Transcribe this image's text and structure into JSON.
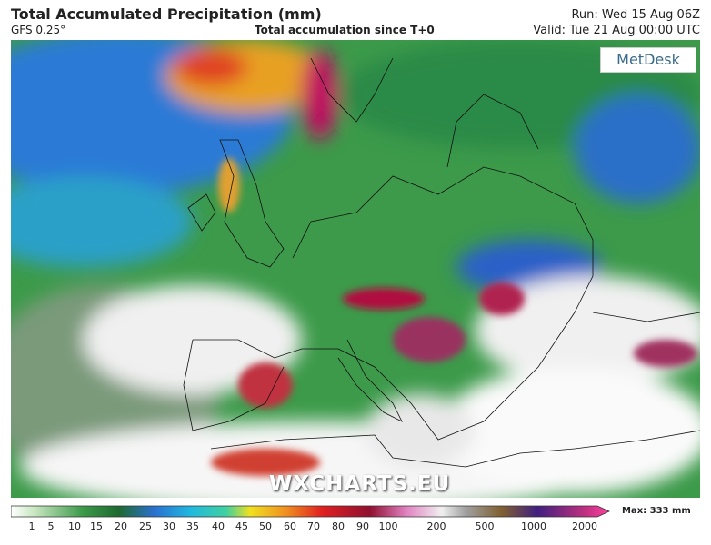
{
  "header": {
    "title": "Total Accumulated Precipitation (mm)",
    "model": "GFS 0.25°",
    "subtitle": "Total accumulation since T+0",
    "run": "Run: Wed 15 Aug 06Z",
    "valid": "Valid: Tue 21 Aug 00:00 UTC"
  },
  "logo": "MetDesk",
  "watermark": "WXCHARTS.EU",
  "colorbar": {
    "ticks": [
      "1",
      "5",
      "10",
      "15",
      "20",
      "25",
      "30",
      "35",
      "40",
      "45",
      "50",
      "60",
      "70",
      "80",
      "90",
      "100",
      "200",
      "500",
      "1000",
      "2000"
    ],
    "max_label": "Max: 333 mm"
  }
}
